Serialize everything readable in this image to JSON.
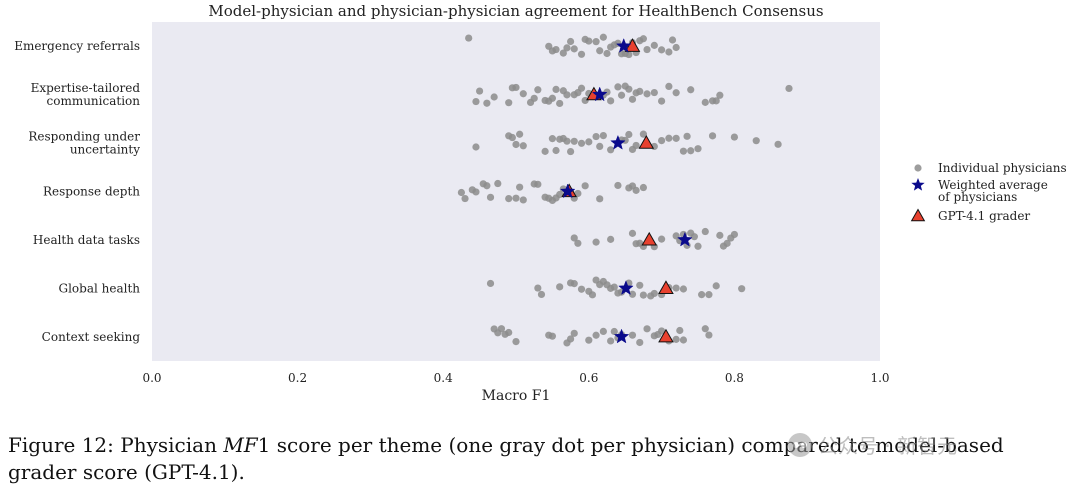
{
  "chart_data": {
    "type": "scatter",
    "title": "Model-physician and physician-physician agreement for HealthBench Consensus",
    "xlabel": "Macro F1",
    "ylabel": "",
    "xlim": [
      0.0,
      1.0
    ],
    "xticks": [
      "0.0",
      "0.2",
      "0.4",
      "0.6",
      "0.8",
      "1.0"
    ],
    "grid": false,
    "legend_position": "right",
    "legend": [
      {
        "label": "Individual physicians",
        "marker": "circle",
        "color": "#8c8c8c"
      },
      {
        "label": "Weighted average\nof physicians",
        "marker": "star",
        "color": "#0a0a8c"
      },
      {
        "label": "GPT-4.1 grader",
        "marker": "triangle",
        "color": "#e8412f"
      }
    ],
    "categories": [
      {
        "label": "Emergency referrals",
        "physicians": [
          0.435,
          0.545,
          0.55,
          0.555,
          0.565,
          0.57,
          0.575,
          0.58,
          0.59,
          0.595,
          0.6,
          0.61,
          0.615,
          0.62,
          0.625,
          0.63,
          0.635,
          0.64,
          0.645,
          0.65,
          0.655,
          0.66,
          0.665,
          0.67,
          0.675,
          0.68,
          0.69,
          0.7,
          0.71,
          0.715,
          0.72
        ],
        "weighted_average": 0.648,
        "gpt41": 0.66
      },
      {
        "label": "Expertise-tailored\ncommunication",
        "physicians": [
          0.445,
          0.45,
          0.46,
          0.47,
          0.49,
          0.495,
          0.5,
          0.51,
          0.52,
          0.525,
          0.53,
          0.54,
          0.545,
          0.55,
          0.555,
          0.56,
          0.565,
          0.57,
          0.58,
          0.585,
          0.59,
          0.595,
          0.6,
          0.62,
          0.625,
          0.63,
          0.64,
          0.645,
          0.65,
          0.655,
          0.66,
          0.665,
          0.67,
          0.68,
          0.69,
          0.7,
          0.71,
          0.72,
          0.74,
          0.76,
          0.77,
          0.775,
          0.78,
          0.875
        ],
        "weighted_average": 0.615,
        "gpt41": 0.607
      },
      {
        "label": "Responding under\nuncertainty",
        "physicians": [
          0.445,
          0.49,
          0.495,
          0.5,
          0.505,
          0.51,
          0.54,
          0.55,
          0.555,
          0.56,
          0.565,
          0.57,
          0.575,
          0.58,
          0.59,
          0.6,
          0.61,
          0.615,
          0.62,
          0.63,
          0.645,
          0.65,
          0.655,
          0.66,
          0.665,
          0.675,
          0.69,
          0.7,
          0.71,
          0.72,
          0.73,
          0.735,
          0.74,
          0.75,
          0.77,
          0.8,
          0.83,
          0.86
        ],
        "weighted_average": 0.64,
        "gpt41": 0.679
      },
      {
        "label": "Response depth",
        "physicians": [
          0.425,
          0.43,
          0.44,
          0.445,
          0.455,
          0.46,
          0.465,
          0.475,
          0.49,
          0.5,
          0.505,
          0.51,
          0.525,
          0.53,
          0.54,
          0.545,
          0.55,
          0.555,
          0.56,
          0.565,
          0.575,
          0.58,
          0.585,
          0.595,
          0.615,
          0.64,
          0.655,
          0.66,
          0.665,
          0.675
        ],
        "weighted_average": 0.571,
        "gpt41": 0.573
      },
      {
        "label": "Health data tasks",
        "physicians": [
          0.58,
          0.585,
          0.61,
          0.63,
          0.66,
          0.665,
          0.67,
          0.675,
          0.69,
          0.7,
          0.72,
          0.725,
          0.73,
          0.735,
          0.74,
          0.745,
          0.75,
          0.76,
          0.78,
          0.785,
          0.79,
          0.795,
          0.8
        ],
        "weighted_average": 0.732,
        "gpt41": 0.683
      },
      {
        "label": "Global health",
        "physicians": [
          0.465,
          0.53,
          0.535,
          0.56,
          0.575,
          0.58,
          0.59,
          0.6,
          0.605,
          0.61,
          0.615,
          0.62,
          0.625,
          0.63,
          0.635,
          0.64,
          0.645,
          0.655,
          0.66,
          0.67,
          0.675,
          0.685,
          0.69,
          0.7,
          0.71,
          0.72,
          0.73,
          0.755,
          0.765,
          0.775,
          0.81
        ],
        "weighted_average": 0.651,
        "gpt41": 0.706
      },
      {
        "label": "Context seeking",
        "physicians": [
          0.47,
          0.475,
          0.48,
          0.485,
          0.49,
          0.5,
          0.545,
          0.55,
          0.57,
          0.575,
          0.58,
          0.6,
          0.61,
          0.62,
          0.63,
          0.635,
          0.64,
          0.645,
          0.66,
          0.67,
          0.68,
          0.69,
          0.695,
          0.7,
          0.71,
          0.72,
          0.725,
          0.73,
          0.76,
          0.765
        ],
        "weighted_average": 0.645,
        "gpt41": 0.706
      }
    ]
  },
  "caption": {
    "prefix": "Figure 12: Physician ",
    "math": "MF",
    "math_suffix": "1",
    "text": " score per theme (one gray dot per physician) compared to model-based grader score (GPT-4.1)."
  },
  "watermark": {
    "text": "公众号 · 新智元"
  },
  "colors": {
    "plot_background": "#eaeaf2",
    "physician_dot": "#8c8c8c",
    "star_fill": "#0a0a8c",
    "triangle_fill": "#e8412f",
    "marker_edge": "#111111"
  }
}
